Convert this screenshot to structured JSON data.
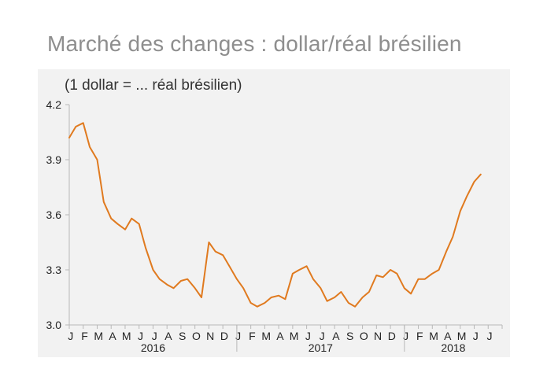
{
  "title": "Marché des changes : dollar/réal brésilien",
  "colors": {
    "line": "#e07a1f",
    "panel": "#f2f2f2",
    "axis": "#b8b8b8",
    "title": "#8e8e8e"
  },
  "chart_data": {
    "type": "line",
    "title": "Marché des changes : dollar/réal brésilien",
    "unit_label": "(1 dollar = ... réal brésilien)",
    "xlabel": "",
    "ylabel": "",
    "ylim": [
      3.0,
      4.2
    ],
    "yticks": [
      "3.0",
      "3.3",
      "3.6",
      "3.9",
      "4.2"
    ],
    "month_labels": [
      "J",
      "F",
      "M",
      "A",
      "M",
      "J",
      "J",
      "A",
      "S",
      "O",
      "N",
      "D",
      "J",
      "F",
      "M",
      "A",
      "M",
      "J",
      "J",
      "A",
      "S",
      "O",
      "N",
      "D",
      "J",
      "F",
      "M",
      "A",
      "M",
      "J",
      "J"
    ],
    "year_labels": [
      "2016",
      "2017",
      "2018"
    ],
    "grid": false,
    "legend": "none",
    "series": [
      {
        "x": [
          "2016-01",
          "2016-01-15",
          "2016-02",
          "2016-02-15",
          "2016-03",
          "2016-03-15",
          "2016-04",
          "2016-04-15",
          "2016-05",
          "2016-05-15",
          "2016-06",
          "2016-06-15",
          "2016-07",
          "2016-07-15",
          "2016-08",
          "2016-08-15",
          "2016-09",
          "2016-09-15",
          "2016-10",
          "2016-10-15",
          "2016-11",
          "2016-11-15",
          "2016-12",
          "2016-12-15",
          "2017-01",
          "2017-01-15",
          "2017-02",
          "2017-02-15",
          "2017-03",
          "2017-03-15",
          "2017-04",
          "2017-04-15",
          "2017-05",
          "2017-05-15",
          "2017-06",
          "2017-06-15",
          "2017-07",
          "2017-07-15",
          "2017-08",
          "2017-08-15",
          "2017-09",
          "2017-09-15",
          "2017-10",
          "2017-10-15",
          "2017-11",
          "2017-11-15",
          "2017-12",
          "2017-12-15",
          "2018-01",
          "2018-01-15",
          "2018-02",
          "2018-02-15",
          "2018-03",
          "2018-03-15",
          "2018-04",
          "2018-04-15",
          "2018-05",
          "2018-05-15",
          "2018-06",
          "2018-06-15"
        ],
        "values": [
          4.02,
          4.08,
          4.1,
          3.97,
          3.9,
          3.67,
          3.58,
          3.55,
          3.52,
          3.58,
          3.55,
          3.42,
          3.3,
          3.25,
          3.22,
          3.2,
          3.24,
          3.25,
          3.2,
          3.15,
          3.45,
          3.4,
          3.38,
          3.32,
          3.25,
          3.2,
          3.12,
          3.1,
          3.12,
          3.15,
          3.16,
          3.14,
          3.28,
          3.3,
          3.32,
          3.25,
          3.2,
          3.13,
          3.15,
          3.18,
          3.12,
          3.1,
          3.15,
          3.18,
          3.27,
          3.26,
          3.3,
          3.28,
          3.2,
          3.17,
          3.25,
          3.25,
          3.28,
          3.3,
          3.4,
          3.48,
          3.62,
          3.7,
          3.78,
          3.82
        ]
      }
    ]
  }
}
